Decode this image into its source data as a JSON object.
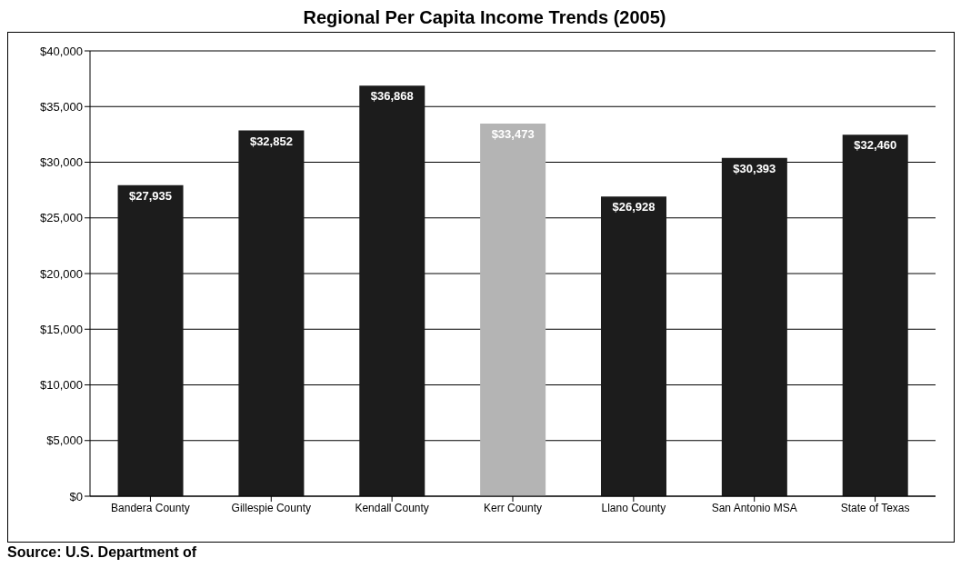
{
  "chart_data": {
    "type": "bar",
    "title": "Regional Per Capita Income Trends (2005)",
    "annotations": [
      "Source: U.S. Department of"
    ],
    "categories": [
      "Bandera County",
      "Gillespie County",
      "Kendall County",
      "Kerr County",
      "Llano County",
      "San Antonio MSA",
      "State of Texas"
    ],
    "values": [
      27935,
      32852,
      36868,
      33473,
      26928,
      30393,
      32460
    ],
    "colors": [
      "#1c1c1c",
      "#1c1c1c",
      "#1c1c1c",
      "#b4b4b4",
      "#1c1c1c",
      "#1c1c1c",
      "#1c1c1c"
    ],
    "value_labels": [
      "$27,935",
      "$32,852",
      "$36,868",
      "$33,473",
      "$26,928",
      "$30,393",
      "$32,460"
    ],
    "ylim": [
      0,
      40000
    ],
    "yticks": [
      {
        "value": 0,
        "label": "$0"
      },
      {
        "value": 5000,
        "label": "$5,000"
      },
      {
        "value": 10000,
        "label": "$10,000"
      },
      {
        "value": 15000,
        "label": "$15,000"
      },
      {
        "value": 20000,
        "label": "$20,000"
      },
      {
        "value": 25000,
        "label": "$25,000"
      },
      {
        "value": 30000,
        "label": "$30,000"
      },
      {
        "value": 35000,
        "label": "$35,000"
      },
      {
        "value": 40000,
        "label": "$40,000"
      }
    ],
    "grid": "y"
  }
}
